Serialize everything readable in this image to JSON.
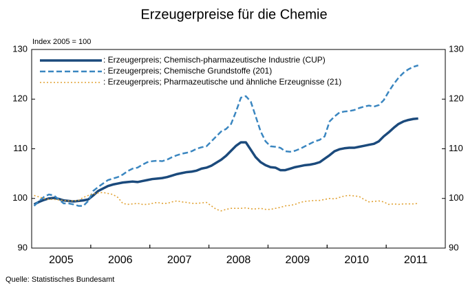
{
  "chart_data": {
    "type": "line",
    "title": "Erzeugerpreise für die Chemie",
    "subtitle": "Index 2005 = 100",
    "source": "Quelle: Statistisches Bundesamt",
    "categories": [
      null,
      null,
      null,
      null,
      null,
      null,
      "2005",
      null,
      null,
      null,
      null,
      null,
      null,
      null,
      null,
      null,
      null,
      null,
      "2006",
      null,
      null,
      null,
      null,
      null,
      null,
      null,
      null,
      null,
      null,
      null,
      "2007",
      null,
      null,
      null,
      null,
      null,
      null,
      null,
      null,
      null,
      null,
      null,
      "2008",
      null,
      null,
      null,
      null,
      null,
      null,
      null,
      null,
      null,
      null,
      null,
      "2009",
      null,
      null,
      null,
      null,
      null,
      null,
      null,
      null,
      null,
      null,
      null,
      "2010",
      null,
      null,
      null,
      null,
      null,
      null,
      null,
      null,
      null,
      null,
      null,
      "2011",
      null,
      null,
      null,
      null,
      null
    ],
    "series": [
      {
        "name": ": Erzeugerpreis; Chemisch-pharmazeutische Industrie (CUP)",
        "color": "#1b4a7c",
        "style": "solid",
        "values": [
          98.8,
          99.3,
          99.7,
          100.0,
          100.1,
          99.9,
          99.6,
          99.5,
          99.4,
          99.5,
          99.6,
          99.8,
          100.6,
          101.5,
          102.0,
          102.5,
          102.8,
          103.0,
          103.2,
          103.3,
          103.4,
          103.3,
          103.5,
          103.7,
          103.9,
          104.0,
          104.1,
          104.3,
          104.6,
          104.9,
          105.1,
          105.3,
          105.4,
          105.6,
          106.0,
          106.2,
          106.6,
          107.2,
          107.8,
          108.6,
          109.6,
          110.6,
          111.3,
          111.3,
          109.8,
          108.3,
          107.3,
          106.7,
          106.3,
          106.2,
          105.7,
          105.7,
          106.0,
          106.3,
          106.5,
          106.7,
          106.8,
          107.0,
          107.3,
          108.0,
          108.7,
          109.5,
          109.9,
          110.1,
          110.2,
          110.2,
          110.4,
          110.6,
          110.8,
          111.0,
          111.5,
          112.5,
          113.3,
          114.2,
          115.0,
          115.5,
          115.8,
          116.0,
          116.1,
          null,
          null,
          null,
          null,
          null
        ]
      },
      {
        "name": ": Erzeugerpreis; Chemische Grundstoffe (201)",
        "color": "#3a86c0",
        "style": "dashed",
        "values": [
          98.5,
          99.5,
          100.3,
          100.8,
          100.6,
          99.8,
          99.0,
          99.0,
          98.8,
          98.5,
          98.5,
          99.5,
          101.5,
          102.3,
          103.0,
          103.7,
          104.0,
          104.3,
          104.8,
          105.5,
          106.0,
          106.2,
          106.8,
          107.3,
          107.5,
          107.6,
          107.5,
          107.8,
          108.3,
          108.7,
          109.0,
          109.2,
          109.5,
          110.0,
          110.3,
          110.5,
          111.5,
          112.5,
          113.5,
          114.0,
          115.0,
          117.5,
          120.3,
          120.6,
          119.5,
          116.5,
          113.5,
          111.5,
          110.5,
          110.4,
          110.2,
          109.5,
          109.4,
          109.6,
          110.0,
          110.5,
          111.0,
          111.5,
          111.8,
          112.5,
          115.5,
          116.5,
          117.3,
          117.5,
          117.6,
          117.8,
          118.2,
          118.5,
          118.7,
          118.5,
          118.8,
          119.8,
          121.5,
          123.0,
          124.3,
          125.3,
          126.0,
          126.5,
          126.8,
          null,
          null,
          null,
          null,
          null
        ]
      },
      {
        "name": ": Erzeugerpreis; Pharmazeutische und ähnliche Erzeugnisse (21)",
        "color": "#e0a030",
        "style": "dotted",
        "values": [
          100.6,
          100.3,
          100.0,
          99.8,
          99.8,
          99.7,
          99.6,
          99.5,
          99.5,
          99.6,
          100.2,
          100.6,
          100.9,
          101.1,
          101.2,
          101.0,
          100.8,
          100.2,
          99.0,
          98.8,
          98.9,
          99.0,
          98.8,
          98.8,
          99.0,
          99.2,
          99.0,
          99.0,
          99.3,
          99.5,
          99.3,
          99.2,
          99.0,
          99.0,
          99.1,
          99.2,
          98.5,
          97.8,
          97.5,
          97.8,
          98.0,
          98.0,
          98.0,
          98.1,
          97.9,
          97.9,
          98.0,
          97.8,
          97.8,
          98.0,
          98.2,
          98.5,
          98.6,
          98.8,
          99.2,
          99.4,
          99.5,
          99.6,
          99.6,
          99.8,
          100.0,
          99.9,
          100.2,
          100.5,
          100.6,
          100.5,
          100.4,
          99.8,
          99.3,
          99.4,
          99.5,
          99.3,
          98.8,
          98.9,
          98.8,
          98.9,
          98.9,
          98.9,
          99.0,
          null,
          null,
          null,
          null,
          null
        ]
      }
    ],
    "ylim": [
      90,
      130
    ],
    "yticks": [
      90,
      100,
      110,
      120,
      130
    ],
    "y2lim": [
      90,
      130
    ],
    "y2ticks": [
      90,
      100,
      110,
      120,
      130
    ],
    "grid": false,
    "legend": "upper left"
  }
}
